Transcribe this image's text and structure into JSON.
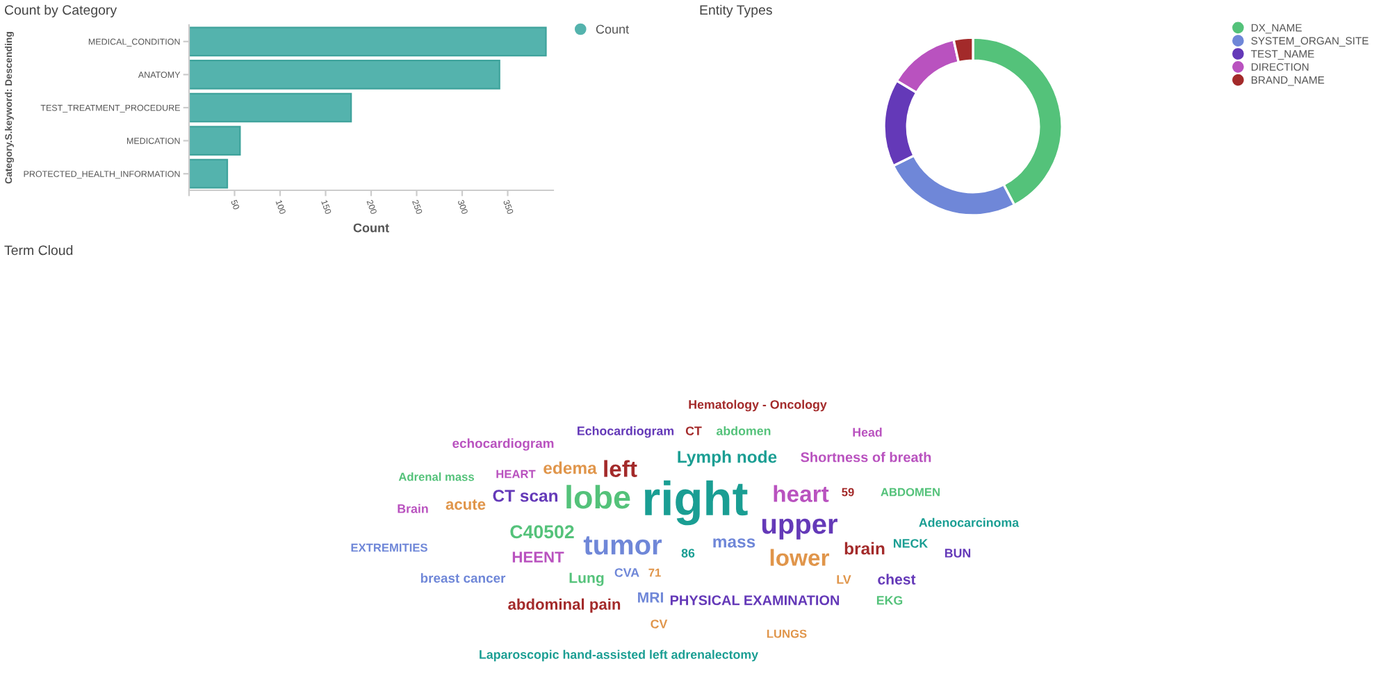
{
  "chart_data": [
    {
      "type": "bar",
      "title": "Count by Category",
      "orientation": "horizontal",
      "xlabel": "Count",
      "ylabel": "Category.S.keyword: Descending",
      "categories": [
        "MEDICAL_CONDITION",
        "ANATOMY",
        "TEST_TREATMENT_PROCEDURE",
        "MEDICATION",
        "PROTECTED_HEALTH_INFORMATION"
      ],
      "series": [
        {
          "name": "Count",
          "color": "#54b3ad",
          "values": [
            392,
            341,
            178,
            56,
            42
          ]
        }
      ],
      "xlim": [
        0,
        400
      ],
      "xticks": [
        {
          "value": 0,
          "label": null
        },
        50,
        100,
        150,
        200,
        250,
        300,
        350
      ],
      "legend": "top right",
      "grid": false
    },
    {
      "type": "donut",
      "title": "Entity Types",
      "categories": [
        "DX_NAME",
        "SYSTEM_ORGAN_SITE",
        "TEST_NAME",
        "DIRECTION",
        "BRAND_NAME"
      ],
      "values": [
        42.3,
        25.4,
        15.9,
        12.9,
        3.5
      ],
      "colors": [
        "#54c27a",
        "#6f87d8",
        "#6439b8",
        "#b952bf",
        "#a32a2a"
      ],
      "legend": "right"
    },
    {
      "type": "other",
      "title": "Term Cloud",
      "categories": [
        "Hematology - Oncology",
        "CT",
        "abdomen",
        "Echocardiogram",
        "Head",
        "echocardiogram",
        "edema",
        "left",
        "Lymph node",
        "Shortness of breath",
        "Adrenal mass",
        "HEART",
        "CT scan",
        "lobe",
        "right",
        "heart",
        "59",
        "ABDOMEN",
        "Brain",
        "acute",
        "upper",
        "Adenocarcinoma",
        "C40502",
        "tumor",
        "mass",
        "EXTREMITIES",
        "NECK",
        "BUN",
        "HEENT",
        "86",
        "lower",
        "brain",
        "breast cancer",
        "Lung",
        "CVA",
        "71",
        "LV",
        "chest",
        "abdominal pain",
        "MRI",
        "PHYSICAL EXAMINATION",
        "EKG",
        "CV",
        "LUNGS",
        "Laparoscopic hand-assisted left adrenalectomy"
      ],
      "colors": [
        "#a32a2a",
        "#a32a2a",
        "#54c27a",
        "#6439b8",
        "#b952bf",
        "#b952bf",
        "#e0954a",
        "#a32a2a",
        "#1a9e93",
        "#b952bf",
        "#54c27a",
        "#b952bf",
        "#6439b8",
        "#54c27a",
        "#1a9e93",
        "#b952bf",
        "#a32a2a",
        "#54c27a",
        "#b952bf",
        "#e0954a",
        "#6439b8",
        "#1a9e93",
        "#54c27a",
        "#6f87d8",
        "#6f87d8",
        "#6f87d8",
        "#1a9e93",
        "#6439b8",
        "#b952bf",
        "#1a9e93",
        "#e0954a",
        "#a32a2a",
        "#6f87d8",
        "#54c27a",
        "#6f87d8",
        "#e0954a",
        "#e0954a",
        "#6439b8",
        "#a32a2a",
        "#6f87d8",
        "#6439b8",
        "#54c27a",
        "#e0954a",
        "#e0954a",
        "#1a9e93"
      ]
    }
  ]
}
